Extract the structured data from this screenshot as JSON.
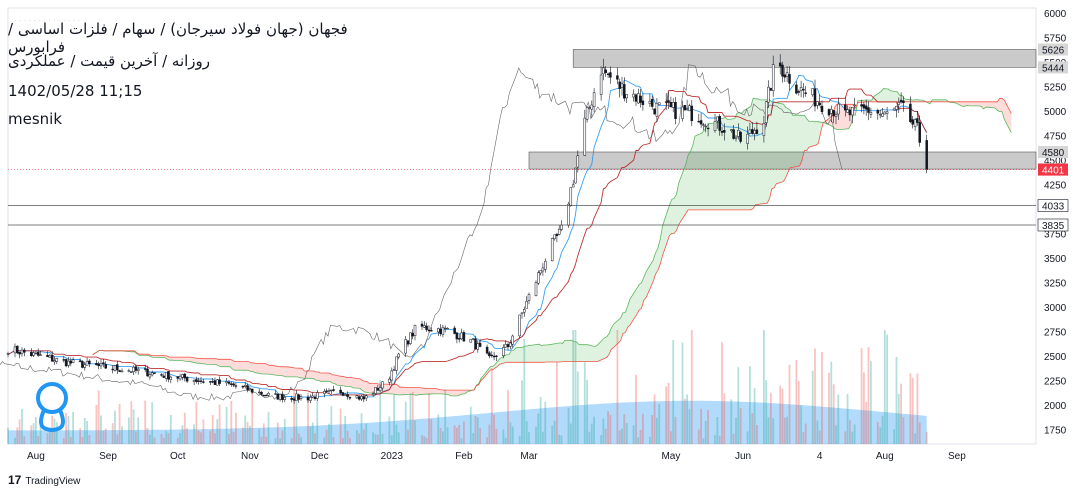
{
  "header": {
    "title": "فجهان (جهان فولاد سیرجان) / سهام / فلزات اساسی / فرابورس",
    "subtitle": "روزانه / آخرین قیمت / عملکردی",
    "datetime": "1402/05/28 11;15",
    "author": "mesnik"
  },
  "footer": {
    "brand": "TradingView"
  },
  "colors": {
    "up": "#26a69a",
    "down": "#ef5350",
    "tenkan": "#2196f3",
    "kijun": "#b71c1c",
    "cloud_bull": "#4caf50",
    "cloud_bear": "#f44336",
    "volume": "#2196f3",
    "current_price": "#f23645",
    "zone": "#9e9e9e"
  },
  "chart_data": {
    "type": "candlestick",
    "title": "",
    "xlabel": "",
    "ylabel": "",
    "ylim": [
      1600,
      6050
    ],
    "y_ticks": [
      6000,
      5750,
      5500,
      5250,
      5000,
      4750,
      4500,
      4250,
      3750,
      3500,
      3250,
      3000,
      2750,
      2500,
      2250,
      2000,
      1750
    ],
    "x_ticks": [
      "Aug",
      "Sep",
      "Oct",
      "Nov",
      "Dec",
      "2023",
      "Feb",
      "Mar",
      "May",
      "Jun",
      "4",
      "Aug",
      "Sep"
    ],
    "price_labels": [
      {
        "value": 5626,
        "label": "5626",
        "style": "zone"
      },
      {
        "value": 5444,
        "label": "5444",
        "style": "zone"
      },
      {
        "value": 4580,
        "label": "4580",
        "style": "zone"
      },
      {
        "value": 4405,
        "label": "4405",
        "style": "zone"
      },
      {
        "value": 4401,
        "label": "4401",
        "style": "current"
      },
      {
        "value": 4033,
        "label": "4033",
        "style": "line"
      },
      {
        "value": 3835,
        "label": "3835",
        "style": "line"
      }
    ],
    "resistance_zones": [
      {
        "from": 5444,
        "to": 5626,
        "start": "2023-03-20"
      },
      {
        "from": 4405,
        "to": 4580,
        "start": "2023-03-01"
      }
    ],
    "horizontal_lines": [
      4033,
      3835
    ],
    "current_price": 4401,
    "price_path": [
      {
        "date": "2022-07-20",
        "close": 2570
      },
      {
        "date": "2022-08-15",
        "close": 2430
      },
      {
        "date": "2022-09-15",
        "close": 2340
      },
      {
        "date": "2022-10-10",
        "close": 2250
      },
      {
        "date": "2022-10-25",
        "close": 2200
      },
      {
        "date": "2022-11-10",
        "close": 2090
      },
      {
        "date": "2022-11-25",
        "close": 2070
      },
      {
        "date": "2022-12-10",
        "close": 2140
      },
      {
        "date": "2022-12-20",
        "close": 2060
      },
      {
        "date": "2022-12-30",
        "close": 2240
      },
      {
        "date": "2023-01-05",
        "close": 2560
      },
      {
        "date": "2023-01-12",
        "close": 2800
      },
      {
        "date": "2023-01-25",
        "close": 2760
      },
      {
        "date": "2023-02-05",
        "close": 2640
      },
      {
        "date": "2023-02-12",
        "close": 2460
      },
      {
        "date": "2023-02-20",
        "close": 2600
      },
      {
        "date": "2023-03-01",
        "close": 3100
      },
      {
        "date": "2023-03-10",
        "close": 3600
      },
      {
        "date": "2023-03-15",
        "close": 3780
      },
      {
        "date": "2023-03-20",
        "close": 4300
      },
      {
        "date": "2023-03-25",
        "close": 4880
      },
      {
        "date": "2023-04-01",
        "close": 5430
      },
      {
        "date": "2023-04-10",
        "close": 5230
      },
      {
        "date": "2023-04-25",
        "close": 5030
      },
      {
        "date": "2023-05-10",
        "close": 4980
      },
      {
        "date": "2023-05-25",
        "close": 4820
      },
      {
        "date": "2023-06-01",
        "close": 4680
      },
      {
        "date": "2023-06-10",
        "close": 4920
      },
      {
        "date": "2023-06-15",
        "close": 5510
      },
      {
        "date": "2023-06-25",
        "close": 5230
      },
      {
        "date": "2023-07-05",
        "close": 5080
      },
      {
        "date": "2023-07-15",
        "close": 4960
      },
      {
        "date": "2023-07-25",
        "close": 5010
      },
      {
        "date": "2023-08-01",
        "close": 4950
      },
      {
        "date": "2023-08-08",
        "close": 5030
      },
      {
        "date": "2023-08-15",
        "close": 4800
      },
      {
        "date": "2023-08-19",
        "close": 4401
      }
    ]
  }
}
